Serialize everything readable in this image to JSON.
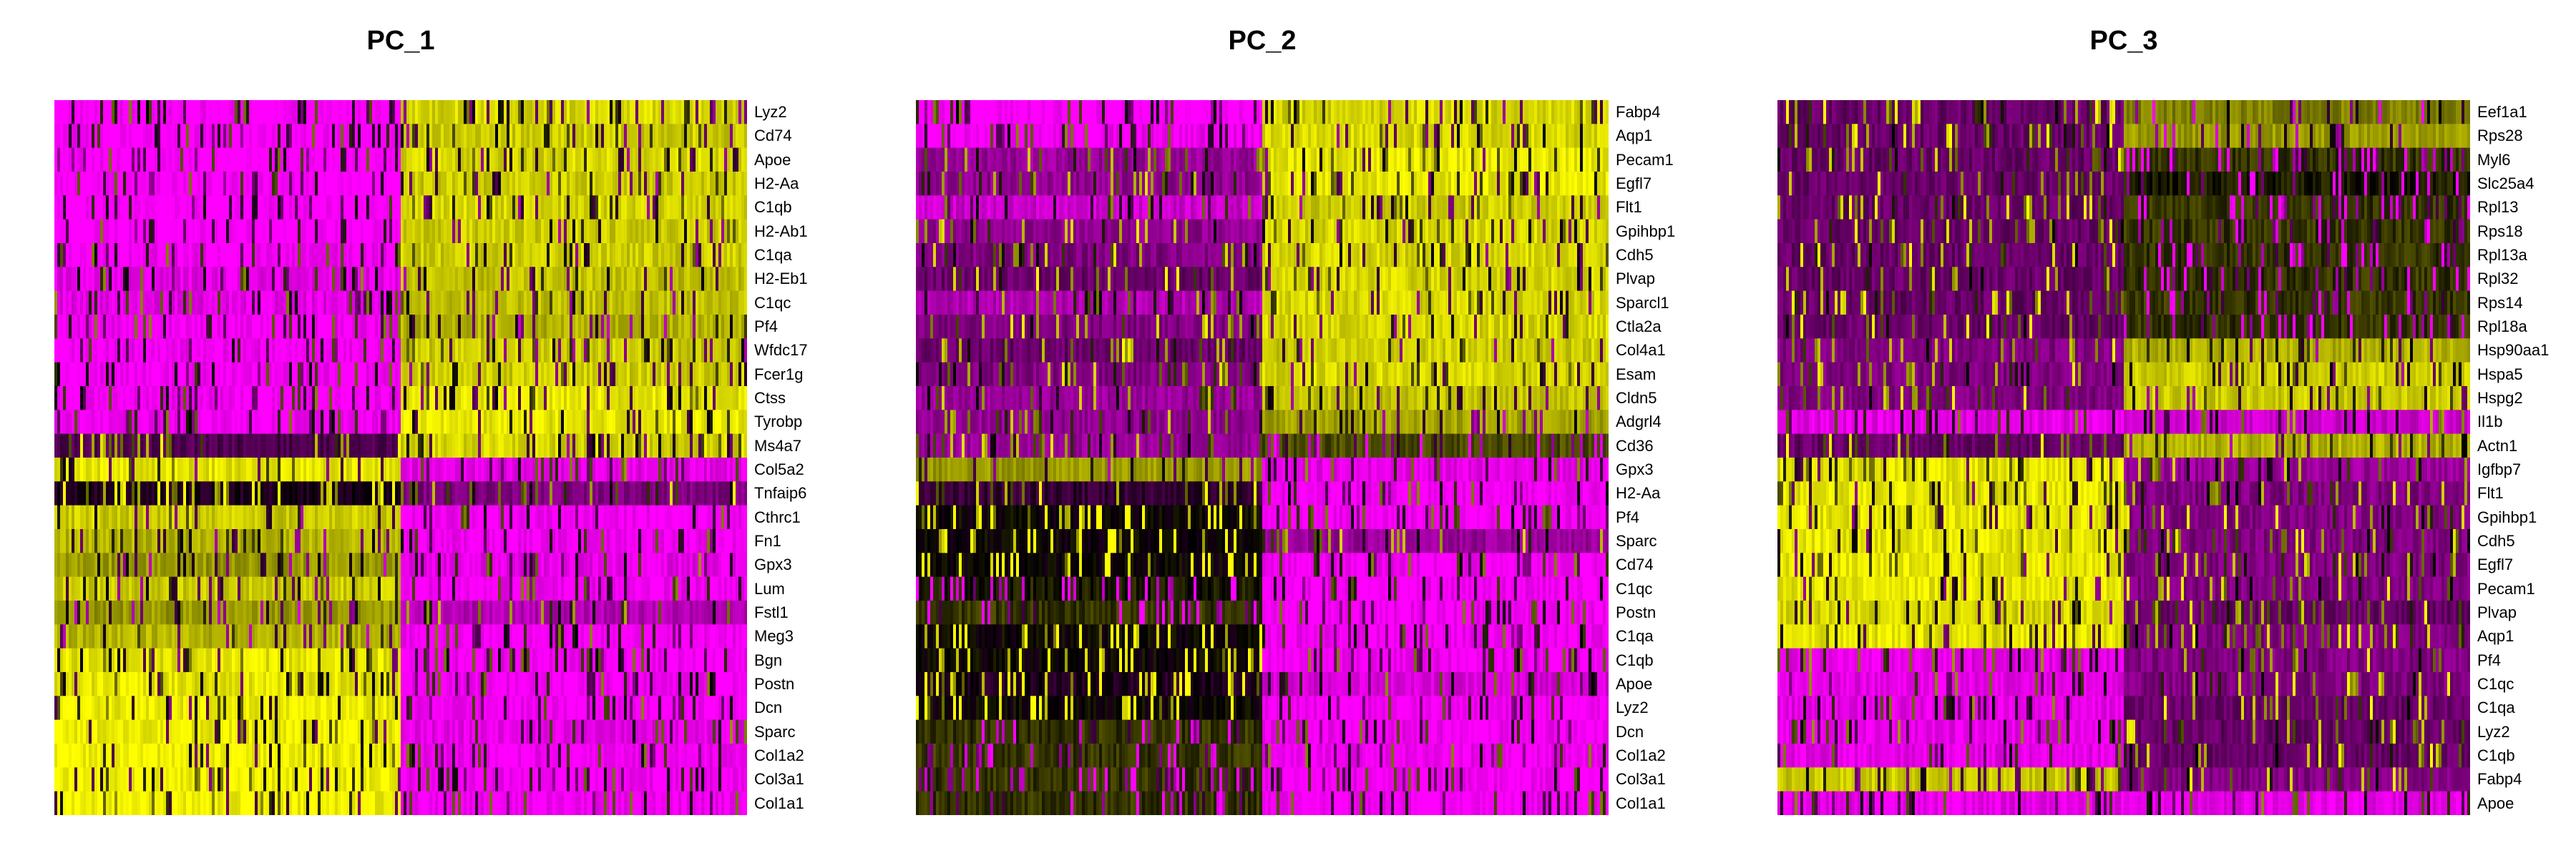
{
  "chart_data": [
    {
      "type": "heatmap",
      "title": "PC_1",
      "colors": {
        "low": "#ff00ff",
        "mid": "#000000",
        "high": "#ffff00"
      },
      "split": 0.5,
      "genes": [
        "Lyz2",
        "Cd74",
        "Apoe",
        "H2-Aa",
        "C1qb",
        "H2-Ab1",
        "C1qa",
        "H2-Eb1",
        "C1qc",
        "Pf4",
        "Wfdc17",
        "Fcer1g",
        "Ctss",
        "Tyrobp",
        "Ms4a7",
        "Col5a2",
        "Tnfaip6",
        "Cthrc1",
        "Fn1",
        "Gpx3",
        "Lum",
        "Fstl1",
        "Meg3",
        "Bgn",
        "Postn",
        "Dcn",
        "Sparc",
        "Col1a2",
        "Col3a1",
        "Col1a1"
      ],
      "left_level": [
        0,
        0,
        0,
        0,
        0,
        0,
        0.02,
        0.05,
        0.05,
        0.02,
        0.02,
        0.02,
        0.02,
        0.02,
        0.35,
        0.95,
        0.45,
        0.9,
        0.85,
        0.8,
        0.9,
        0.8,
        0.85,
        0.95,
        0.95,
        0.97,
        0.97,
        0.98,
        0.98,
        0.98
      ],
      "right_level": [
        0.92,
        0.9,
        0.92,
        0.9,
        0.92,
        0.9,
        0.9,
        0.88,
        0.88,
        0.85,
        0.9,
        0.9,
        0.95,
        0.95,
        0.92,
        0.05,
        0.25,
        0.02,
        0.02,
        0.05,
        0.02,
        0.15,
        0.02,
        0.02,
        0.02,
        0.02,
        0.05,
        0.02,
        0.02,
        0.02
      ]
    },
    {
      "type": "heatmap",
      "title": "PC_2",
      "colors": {
        "low": "#ff00ff",
        "mid": "#000000",
        "high": "#ffff00"
      },
      "split": 0.5,
      "genes": [
        "Fabp4",
        "Aqp1",
        "Pecam1",
        "Egfl7",
        "Flt1",
        "Gpihbp1",
        "Cdh5",
        "Plvap",
        "Sparcl1",
        "Ctla2a",
        "Col4a1",
        "Esam",
        "Cldn5",
        "Adgrl4",
        "Cd36",
        "Gpx3",
        "H2-Aa",
        "Pf4",
        "Sparc",
        "Cd74",
        "C1qc",
        "Postn",
        "C1qa",
        "C1qb",
        "Apoe",
        "Lyz2",
        "Dcn",
        "Col1a2",
        "Col3a1",
        "Col1a1"
      ],
      "left_level": [
        0,
        0.02,
        0.2,
        0.22,
        0.1,
        0.22,
        0.25,
        0.3,
        0.15,
        0.25,
        0.3,
        0.25,
        0.2,
        0.22,
        0.2,
        0.8,
        0.4,
        0.5,
        0.5,
        0.5,
        0.55,
        0.6,
        0.5,
        0.5,
        0.45,
        0.5,
        0.6,
        0.6,
        0.6,
        0.6
      ],
      "right_level": [
        0.92,
        0.92,
        0.95,
        0.95,
        0.9,
        0.92,
        0.92,
        0.92,
        0.92,
        0.92,
        0.9,
        0.92,
        0.88,
        0.82,
        0.65,
        0.05,
        0.02,
        0.02,
        0.2,
        0.02,
        0.02,
        0.02,
        0.02,
        0.02,
        0.08,
        0.02,
        0.02,
        0.02,
        0.02,
        0.02
      ]
    },
    {
      "type": "heatmap",
      "title": "PC_3",
      "colors": {
        "low": "#ff00ff",
        "mid": "#000000",
        "high": "#ffff00"
      },
      "split": 0.5,
      "genes": [
        "Eef1a1",
        "Rps28",
        "Myl6",
        "Slc25a4",
        "Rpl13",
        "Rps18",
        "Rpl13a",
        "Rpl32",
        "Rps14",
        "Rpl18a",
        "Hsp90aa1",
        "Hspa5",
        "Hspg2",
        "Il1b",
        "Actn1",
        "Igfbp7",
        "Flt1",
        "Gpihbp1",
        "Cdh5",
        "Egfl7",
        "Pecam1",
        "Plvap",
        "Aqp1",
        "Pf4",
        "C1qc",
        "C1qa",
        "Lyz2",
        "C1qb",
        "Fabp4",
        "Apoe"
      ],
      "left_level": [
        0.3,
        0.3,
        0.3,
        0.3,
        0.3,
        0.3,
        0.3,
        0.3,
        0.3,
        0.3,
        0.25,
        0.25,
        0.25,
        0.05,
        0.3,
        0.95,
        0.95,
        0.95,
        0.95,
        0.95,
        0.95,
        0.92,
        0.95,
        0.05,
        0.05,
        0.05,
        0.05,
        0.05,
        0.9,
        0.05
      ],
      "right_level": [
        0.75,
        0.8,
        0.6,
        0.55,
        0.6,
        0.6,
        0.6,
        0.6,
        0.6,
        0.6,
        0.85,
        0.9,
        0.9,
        0.1,
        0.85,
        0.2,
        0.25,
        0.25,
        0.25,
        0.25,
        0.25,
        0.3,
        0.25,
        0.25,
        0.25,
        0.3,
        0.3,
        0.3,
        0.25,
        0.05
      ]
    }
  ]
}
